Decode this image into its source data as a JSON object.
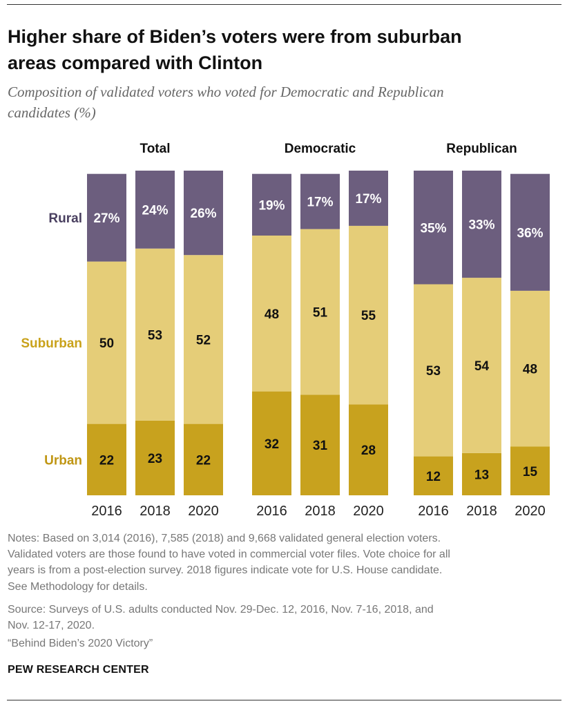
{
  "title_lines": [
    "Higher share of Biden’s voters were from suburban",
    "areas compared with Clinton"
  ],
  "subtitle_lines": [
    "Composition of validated voters who voted for Democratic and Republican",
    "candidates (%)"
  ],
  "colors": {
    "rural": "#6c5e7e",
    "suburban": "#e5cd78",
    "urban": "#c8a21e",
    "suburban_label": "#c9a21b",
    "urban_label": "#c09614",
    "rural_label": "#4a4060"
  },
  "chart_data": {
    "type": "bar",
    "stacked": true,
    "orientation": "vertical",
    "categories": [
      "2016",
      "2018",
      "2020"
    ],
    "groups": [
      {
        "name": "Total",
        "series": [
          {
            "name": "Rural",
            "values": [
              27,
              24,
              26
            ]
          },
          {
            "name": "Suburban",
            "values": [
              50,
              53,
              52
            ]
          },
          {
            "name": "Urban",
            "values": [
              22,
              23,
              22
            ]
          }
        ]
      },
      {
        "name": "Democratic",
        "series": [
          {
            "name": "Rural",
            "values": [
              19,
              17,
              17
            ]
          },
          {
            "name": "Suburban",
            "values": [
              48,
              51,
              55
            ]
          },
          {
            "name": "Urban",
            "values": [
              32,
              31,
              28
            ]
          }
        ]
      },
      {
        "name": "Republican",
        "series": [
          {
            "name": "Rural",
            "values": [
              35,
              33,
              36
            ]
          },
          {
            "name": "Suburban",
            "values": [
              53,
              54,
              48
            ]
          },
          {
            "name": "Urban",
            "values": [
              12,
              13,
              15
            ]
          }
        ]
      }
    ],
    "percent_on_first_rural_row": true,
    "legend": [
      "Rural",
      "Suburban",
      "Urban"
    ],
    "legend_placement": "left",
    "ylim": [
      0,
      100
    ]
  },
  "notes_lines": [
    "Notes: Based on 3,014 (2016), 7,585 (2018) and 9,668 validated general election voters.",
    "Validated voters are those found to have voted in commercial voter files. Vote choice for all",
    "years is from a post-election survey. 2018 figures indicate vote for U.S. House candidate.",
    "See Methodology for details."
  ],
  "source_lines": [
    "Source: Surveys of U.S. adults conducted Nov. 29-Dec. 12, 2016, Nov. 7-16, 2018, and",
    "Nov. 12-17, 2020."
  ],
  "report_title": "“Behind Biden’s 2020 Victory”",
  "brand": "PEW RESEARCH CENTER"
}
